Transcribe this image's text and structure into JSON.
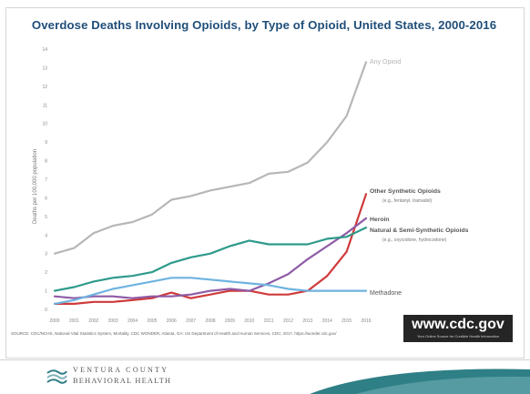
{
  "slide": {
    "title": "Overdose Deaths Involving Opioids, by Type of Opioid, United States, 2000-2016",
    "source_note": "SOURCE: CDC/NCHS, National Vital Statistics System, Mortality. CDC WONDER, Atlanta, GA: US Department of Health and Human Services, CDC; 2017. https://wonder.cdc.gov/",
    "cdc_logo": {
      "url": "www.cdc.gov",
      "tagline": "Your Online Source for Credible Health Information"
    },
    "footer": {
      "org_line1": "VENTURA COUNTY",
      "org_line2": "BEHAVIORAL HEALTH"
    }
  },
  "colors": {
    "any_opioid": "#b7b7b7",
    "other_synthetic": "#cf3a3a",
    "heroin": "#8e5ba6",
    "natural_semi": "#2e9a8b",
    "methadone": "#6fb3e0",
    "title": "#1f4e79",
    "footer_teal": "#2f7f86"
  },
  "chart_data": {
    "type": "line",
    "title": "Overdose Deaths Involving Opioids, by Type of Opioid, United States, 2000-2016",
    "xlabel": "",
    "ylabel": "Deaths per 100,000 population",
    "ylim": [
      0,
      14
    ],
    "yticks": [
      "0",
      "1",
      "2",
      "3",
      "4",
      "5",
      "6",
      "7",
      "8",
      "9",
      "10",
      "11",
      "12",
      "13",
      "14"
    ],
    "x": [
      "2000",
      "2001",
      "2002",
      "2003",
      "2004",
      "2005",
      "2006",
      "2007",
      "2008",
      "2009",
      "2010",
      "2011",
      "2012",
      "2013",
      "2014",
      "2015",
      "2016"
    ],
    "grid": false,
    "series": [
      {
        "name": "Any Opioid",
        "color_key": "any_opioid",
        "values": [
          3.0,
          3.3,
          4.1,
          4.5,
          4.7,
          5.1,
          5.9,
          6.1,
          6.4,
          6.6,
          6.8,
          7.3,
          7.4,
          7.9,
          9.0,
          10.4,
          13.3
        ]
      },
      {
        "name": "Other Synthetic Opioids",
        "sublabel": "(e.g., fentanyl, tramadol)",
        "color_key": "other_synthetic",
        "values": [
          0.3,
          0.3,
          0.4,
          0.4,
          0.5,
          0.6,
          0.9,
          0.6,
          0.8,
          1.0,
          1.0,
          0.8,
          0.8,
          1.0,
          1.8,
          3.1,
          6.2
        ]
      },
      {
        "name": "Heroin",
        "color_key": "heroin",
        "values": [
          0.7,
          0.6,
          0.7,
          0.7,
          0.6,
          0.7,
          0.7,
          0.8,
          1.0,
          1.1,
          1.0,
          1.4,
          1.9,
          2.7,
          3.4,
          4.1,
          4.9
        ]
      },
      {
        "name": "Natural & Semi-Synthetic Opioids",
        "sublabel": "(e.g., oxycodone, hydrocodone)",
        "color_key": "natural_semi",
        "values": [
          1.0,
          1.2,
          1.5,
          1.7,
          1.8,
          2.0,
          2.5,
          2.8,
          3.0,
          3.4,
          3.7,
          3.5,
          3.5,
          3.5,
          3.8,
          3.9,
          4.4
        ]
      },
      {
        "name": "Methadone",
        "color_key": "methadone",
        "values": [
          0.3,
          0.5,
          0.8,
          1.1,
          1.3,
          1.5,
          1.7,
          1.7,
          1.6,
          1.5,
          1.4,
          1.3,
          1.1,
          1.0,
          1.0,
          1.0,
          1.0
        ]
      }
    ]
  }
}
